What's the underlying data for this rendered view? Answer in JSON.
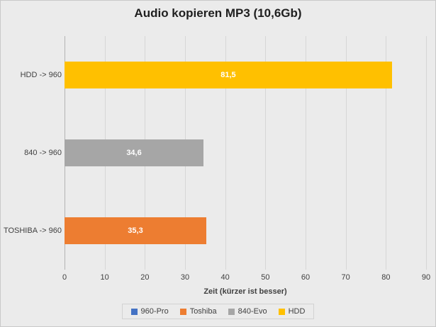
{
  "chart_data": {
    "type": "bar",
    "orientation": "horizontal",
    "title": "Audio kopieren MP3 (10,6Gb)",
    "categories": [
      "HDD -> 960",
      "840 -> 960",
      "TOSHIBA -> 960"
    ],
    "values": [
      81.5,
      34.6,
      35.3
    ],
    "value_labels": [
      "81,5",
      "34,6",
      "35,3"
    ],
    "bar_colors": [
      "#FFC000",
      "#A6A6A6",
      "#ED7D31"
    ],
    "xlabel": "Zeit (kürzer ist besser)",
    "xlim": [
      0,
      90
    ],
    "xticks": [
      0,
      10,
      20,
      30,
      40,
      50,
      60,
      70,
      80,
      90
    ],
    "grid": true,
    "legend_position": "bottom",
    "legend": [
      {
        "label": "960-Pro",
        "color": "#4472C4"
      },
      {
        "label": "Toshiba",
        "color": "#ED7D31"
      },
      {
        "label": "840-Evo",
        "color": "#A6A6A6"
      },
      {
        "label": "HDD",
        "color": "#FFC000"
      }
    ],
    "colors": {
      "background": "#EBEBEB",
      "gridline": "#D6D6D6",
      "axis_line": "#B3B3B3",
      "text": "#404040",
      "title_text": "#1F1F1F",
      "bar_label_text": "#FFFFFF"
    }
  }
}
